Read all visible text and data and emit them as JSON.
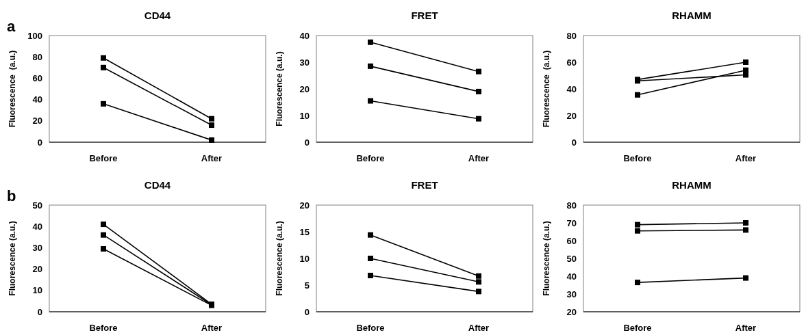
{
  "chart_data": [
    {
      "type": "line",
      "title": "CD44",
      "ylabel": "Fluorescence  (a.u.)",
      "annotations": [
        "a"
      ],
      "categories": [
        "Before",
        "After"
      ],
      "marker": "square",
      "ylim": [
        0,
        100
      ],
      "yticks": [
        0,
        20,
        40,
        60,
        80,
        100
      ],
      "series": [
        {
          "color": "#000000",
          "values": [
            79,
            22
          ]
        },
        {
          "color": "#000000",
          "values": [
            70,
            16
          ]
        },
        {
          "color": "#000000",
          "values": [
            36,
            2
          ]
        }
      ]
    },
    {
      "type": "line",
      "title": "FRET",
      "ylabel": "Fluorescence (a.u.)",
      "categories": [
        "Before",
        "After"
      ],
      "marker": "square",
      "ylim": [
        0,
        40
      ],
      "yticks": [
        0,
        10,
        20,
        30,
        40
      ],
      "series": [
        {
          "color": "#000000",
          "values": [
            37.5,
            26.5
          ]
        },
        {
          "color": "#000000",
          "values": [
            28.5,
            19
          ]
        },
        {
          "color": "#000000",
          "values": [
            15.5,
            8.8
          ]
        }
      ]
    },
    {
      "type": "line",
      "title": "RHAMM",
      "ylabel": "Fluorescence  (a.u.)",
      "categories": [
        "Before",
        "After"
      ],
      "marker": "square",
      "ylim": [
        0,
        80
      ],
      "yticks": [
        0,
        20,
        40,
        60,
        80
      ],
      "series": [
        {
          "color": "#000000",
          "values": [
            47,
            60
          ]
        },
        {
          "color": "#000000",
          "values": [
            46,
            50.5
          ]
        },
        {
          "color": "#000000",
          "values": [
            35.5,
            54
          ]
        }
      ]
    },
    {
      "type": "line",
      "title": "CD44",
      "ylabel": "Fluorescence (a.u.)",
      "annotations": [
        "b"
      ],
      "categories": [
        "Before",
        "After"
      ],
      "marker": "square",
      "ylim": [
        0,
        50
      ],
      "yticks": [
        0,
        10,
        20,
        30,
        40,
        50
      ],
      "series": [
        {
          "color": "#000000",
          "values": [
            41,
            3.5
          ]
        },
        {
          "color": "#000000",
          "values": [
            36,
            3.3
          ]
        },
        {
          "color": "#000000",
          "values": [
            29.5,
            3
          ]
        }
      ]
    },
    {
      "type": "line",
      "title": "FRET",
      "ylabel": "Fluorescence (a.u.)",
      "categories": [
        "Before",
        "After"
      ],
      "marker": "square",
      "ylim": [
        0,
        20
      ],
      "yticks": [
        0,
        5,
        10,
        15,
        20
      ],
      "series": [
        {
          "color": "#000000",
          "values": [
            14.4,
            6.7
          ]
        },
        {
          "color": "#000000",
          "values": [
            10,
            5.6
          ]
        },
        {
          "color": "#000000",
          "values": [
            6.8,
            3.8
          ]
        }
      ]
    },
    {
      "type": "line",
      "title": "RHAMM",
      "ylabel": "Fluorescence (a.u.)",
      "categories": [
        "Before",
        "After"
      ],
      "marker": "square",
      "ylim": [
        20,
        80
      ],
      "yticks": [
        20,
        30,
        40,
        50,
        60,
        70,
        80
      ],
      "series": [
        {
          "color": "#000000",
          "values": [
            69,
            70
          ]
        },
        {
          "color": "#000000",
          "values": [
            65.5,
            66
          ]
        },
        {
          "color": "#000000",
          "values": [
            36.5,
            39
          ]
        }
      ]
    }
  ]
}
